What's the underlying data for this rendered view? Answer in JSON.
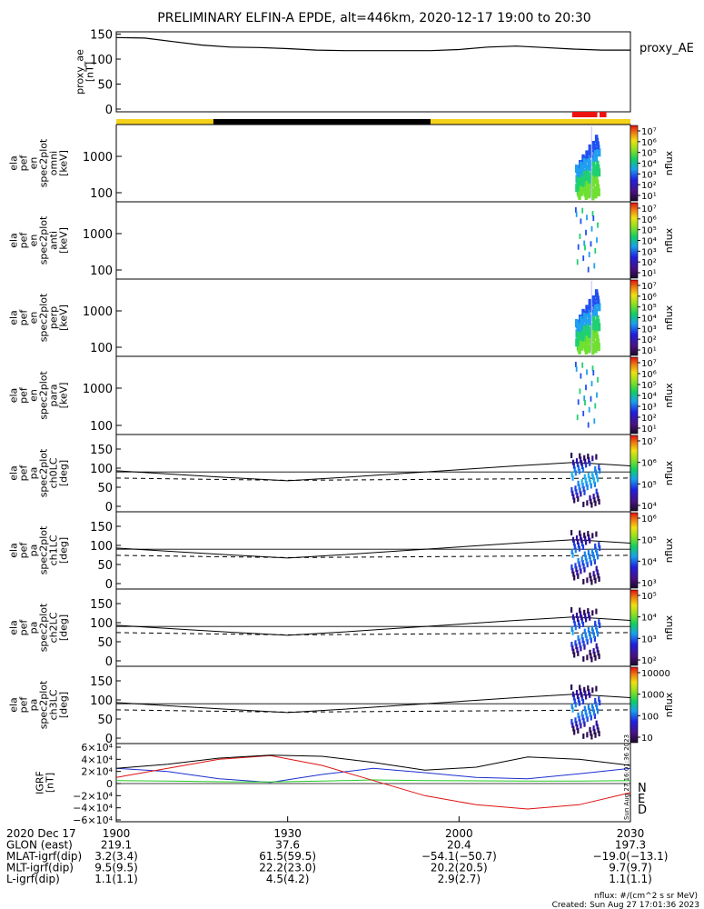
{
  "title": "PRELIMINARY ELFIN-A EPDE, alt=446km, 2020-12-17 19:00 to 20:30",
  "colors": {
    "orbit_bar_yellow": "#f4d11a",
    "orbit_bar_black": "#000000",
    "science_bar_red": "#ee1111",
    "igrf_n": "#1a2fd0",
    "igrf_e": "#22cc22",
    "igrf_d": "#dd1111"
  },
  "panels": {
    "proxy_ae": {
      "ylabel_lines": [
        "proxy_ae",
        "[nT]"
      ],
      "legend": "proxy_AE",
      "yticks": [
        "150",
        "100",
        "50",
        "0"
      ]
    },
    "energy": [
      {
        "ylabel_lines": [
          "ela",
          "pef",
          "en",
          "spec2plot",
          "omni",
          "[keV]"
        ],
        "yticks": [
          "1000",
          "100"
        ],
        "cbar_label": "nflux",
        "cbar_ticks": [
          "10⁷",
          "10⁶",
          "10⁵",
          "10⁴",
          "10³",
          "10²",
          "10¹"
        ]
      },
      {
        "ylabel_lines": [
          "ela",
          "pef",
          "en",
          "spec2plot",
          "anti",
          "[keV]"
        ],
        "yticks": [
          "1000",
          "100"
        ],
        "cbar_label": "nflux",
        "cbar_ticks": [
          "10⁷",
          "10⁶",
          "10⁵",
          "10⁴",
          "10³",
          "10²",
          "10¹"
        ]
      },
      {
        "ylabel_lines": [
          "ela",
          "pef",
          "en",
          "spec2plot",
          "perp",
          "[keV]"
        ],
        "yticks": [
          "1000",
          "100"
        ],
        "cbar_label": "nflux",
        "cbar_ticks": [
          "10⁷",
          "10⁶",
          "10⁵",
          "10⁴",
          "10³",
          "10²",
          "10¹"
        ]
      },
      {
        "ylabel_lines": [
          "ela",
          "pef",
          "en",
          "spec2plot",
          "para",
          "[keV]"
        ],
        "yticks": [
          "1000",
          "100"
        ],
        "cbar_label": "nflux",
        "cbar_ticks": [
          "10⁷",
          "10⁶",
          "10⁵",
          "10⁴",
          "10³",
          "10²",
          "10¹"
        ]
      }
    ],
    "pitch": [
      {
        "ylabel_lines": [
          "ela",
          "pef",
          "pa",
          "spec2plot",
          "ch0LC",
          "[deg]"
        ],
        "yticks": [
          "150",
          "100",
          "50",
          "0"
        ],
        "cbar_label": "nflux",
        "cbar_ticks": [
          "10⁷",
          "10⁶",
          "10⁵",
          "10⁴"
        ]
      },
      {
        "ylabel_lines": [
          "ela",
          "pef",
          "pa",
          "spec2plot",
          "ch1LC",
          "[deg]"
        ],
        "yticks": [
          "150",
          "100",
          "50",
          "0"
        ],
        "cbar_label": "nflux",
        "cbar_ticks": [
          "10⁶",
          "10⁵",
          "10⁴",
          "10³"
        ]
      },
      {
        "ylabel_lines": [
          "ela",
          "pef",
          "pa",
          "spec2plot",
          "ch2LC",
          "[deg]"
        ],
        "yticks": [
          "150",
          "100",
          "50",
          "0"
        ],
        "cbar_label": "nflux",
        "cbar_ticks": [
          "10⁵",
          "10⁴",
          "10³",
          "10²"
        ]
      },
      {
        "ylabel_lines": [
          "ela",
          "pef",
          "pa",
          "spec2plot",
          "ch3LC",
          "[deg]"
        ],
        "yticks": [
          "150",
          "100",
          "50",
          "0"
        ],
        "cbar_label": "nflux",
        "cbar_ticks": [
          "10000",
          "1000",
          "100",
          "10"
        ]
      }
    ],
    "igrf": {
      "ylabel_lines": [
        "IGRF",
        "[nT]"
      ],
      "yticks": [
        "6×10⁴",
        "4×10⁴",
        "2×10⁴",
        "0",
        "−2×10⁴",
        "−4×10⁴",
        "−6×10⁴"
      ],
      "legend": [
        "N",
        "E",
        "D"
      ],
      "stamp": "Sun Aug 27 16:01:36 2023"
    }
  },
  "chart_data": {
    "type": "line",
    "time_range": [
      "2020-12-17 19:00",
      "2020-12-17 20:30"
    ],
    "proxy_ae": {
      "x_min": [
        0,
        5,
        10,
        15,
        20,
        25,
        30,
        35,
        40,
        45,
        50,
        55,
        60,
        65,
        70,
        75,
        80,
        85,
        90
      ],
      "values": [
        143,
        142,
        135,
        128,
        124,
        123,
        121,
        118,
        117,
        117,
        117,
        117,
        119,
        124,
        126,
        123,
        120,
        118,
        118
      ],
      "ylim": [
        0,
        160
      ]
    },
    "pa_curves": {
      "solid_deg": [
        93,
        84,
        75,
        67,
        76,
        86,
        96,
        106,
        115,
        106
      ],
      "dashed_deg": [
        74,
        72,
        70,
        68,
        69,
        70,
        71,
        72,
        73,
        74
      ]
    },
    "igrf_series": [
      {
        "name": "N",
        "values": [
          25000,
          20000,
          8000,
          2000,
          15000,
          25000,
          18000,
          10000,
          8000,
          16000,
          25000
        ]
      },
      {
        "name": "E",
        "values": [
          5000,
          4000,
          3000,
          2500,
          4000,
          6000,
          5000,
          4500,
          4000,
          4000,
          5000
        ]
      },
      {
        "name": "D",
        "values": [
          10000,
          25000,
          40000,
          46000,
          30000,
          5000,
          -20000,
          -35000,
          -42000,
          -35000,
          -15000
        ]
      },
      {
        "values": [
          25000,
          32000,
          42000,
          47000,
          45000,
          35000,
          22000,
          27000,
          44000,
          40000,
          30000
        ]
      }
    ],
    "ephemeris": {
      "rows": [
        {
          "label": "2020 Dec 17",
          "values": [
            "1900",
            "1930",
            "2000",
            "2030"
          ]
        },
        {
          "label": "GLON (east)",
          "values": [
            "219.1",
            "37.6",
            "20.4",
            "197.3"
          ]
        },
        {
          "label": "MLAT-igrf(dip)",
          "values": [
            "3.2(3.4)",
            "61.5(59.5)",
            "−54.1(−50.7)",
            "−19.0(−13.1)"
          ]
        },
        {
          "label": "MLT-igrf(dip)",
          "values": [
            "9.5(9.5)",
            "22.2(23.0)",
            "20.2(20.5)",
            "9.7(9.7)"
          ]
        },
        {
          "label": "L-igrf(dip)",
          "values": [
            "1.1(1.1)",
            "4.5(4.2)",
            "2.9(2.7)",
            "1.1(1.1)"
          ]
        }
      ]
    }
  },
  "footer": {
    "units_note": "nflux: #/(cm^2 s sr MeV)",
    "created": "Created: Sun Aug 27 17:01:36 2023"
  }
}
